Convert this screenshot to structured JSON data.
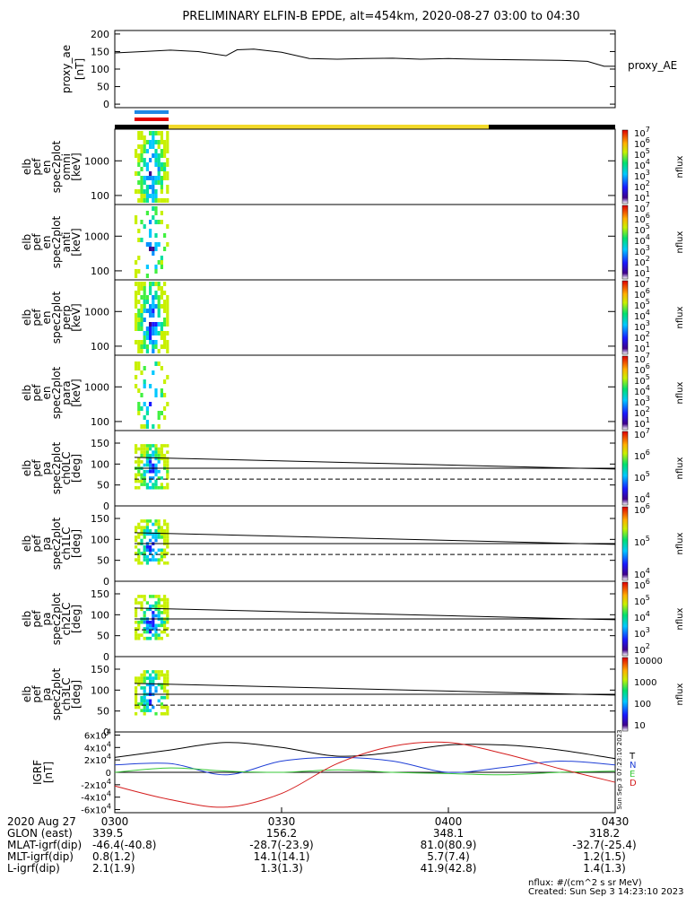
{
  "title": "PRELIMINARY ELFIN-B EPDE, alt=454km, 2020-08-27 03:00 to 04:30",
  "colors": {
    "bar_blue": "#1e88e5",
    "bar_red": "#e00000",
    "bar_yellow": "#f2d92a",
    "bar_black": "#000000",
    "line_black": "#000000",
    "line_blue": "#1f3fd6",
    "line_green": "#37c837",
    "line_red": "#d41c1c"
  },
  "chart_data": [
    {
      "type": "line",
      "name": "proxy_ae",
      "ylabel": "proxy_ae [nT]",
      "legend": "proxy_AE",
      "ylim": [
        -10,
        210
      ],
      "yticks": [
        "200",
        "150",
        "100",
        "50",
        "0"
      ],
      "x_minutes": [
        0,
        5,
        10,
        15,
        20,
        22,
        25,
        30,
        35,
        40,
        45,
        50,
        55,
        60,
        65,
        70,
        75,
        80,
        85,
        88,
        90
      ],
      "values": [
        146,
        150,
        154,
        150,
        138,
        155,
        157,
        148,
        130,
        128,
        130,
        131,
        128,
        130,
        128,
        127,
        126,
        125,
        122,
        108,
        108
      ]
    },
    {
      "type": "heatmap",
      "name": "en-omni",
      "ylabel": "elb pef en spec2plot omni [keV]",
      "scale": "log",
      "yticks": [
        "1000",
        "100"
      ],
      "colorbar": {
        "label": "nflux",
        "ticks": [
          "10^7",
          "10^6",
          "10^5",
          "10^4",
          "10^3",
          "10^2",
          "10^1"
        ]
      }
    },
    {
      "type": "heatmap",
      "name": "en-anti",
      "ylabel": "elb pef en spec2plot anti [keV]",
      "scale": "log",
      "yticks": [
        "1000",
        "100"
      ],
      "colorbar": {
        "label": "nflux",
        "ticks": [
          "10^7",
          "10^6",
          "10^5",
          "10^4",
          "10^3",
          "10^2",
          "10^1"
        ]
      }
    },
    {
      "type": "heatmap",
      "name": "en-perp",
      "ylabel": "elb pef en spec2plot perp [keV]",
      "scale": "log",
      "yticks": [
        "1000",
        "100"
      ],
      "colorbar": {
        "label": "nflux",
        "ticks": [
          "10^7",
          "10^6",
          "10^5",
          "10^4",
          "10^3",
          "10^2",
          "10^1"
        ]
      }
    },
    {
      "type": "heatmap",
      "name": "en-para",
      "ylabel": "elb pef en spec2plot para [keV]",
      "scale": "log",
      "yticks": [
        "1000",
        "100"
      ],
      "colorbar": {
        "label": "nflux",
        "ticks": [
          "10^7",
          "10^6",
          "10^5",
          "10^4",
          "10^3",
          "10^2",
          "10^1"
        ]
      }
    },
    {
      "type": "heatmap",
      "name": "pa-ch0",
      "ylabel": "elb pef pa spec2plot ch0LC [deg]",
      "yticks": [
        "150",
        "100",
        "50",
        "0"
      ],
      "colorbar": {
        "label": "nflux",
        "ticks": [
          "10^7",
          "10^6",
          "10^5",
          "10^4"
        ]
      },
      "lines": {
        "solid_start": 116,
        "solid_end": 88,
        "flat": 90,
        "dashed": 64
      }
    },
    {
      "type": "heatmap",
      "name": "pa-ch1",
      "ylabel": "elb pef pa spec2plot ch1LC [deg]",
      "yticks": [
        "150",
        "100",
        "50",
        "0"
      ],
      "colorbar": {
        "label": "nflux",
        "ticks": [
          "10^6",
          "10^5",
          "10^4"
        ]
      },
      "lines": {
        "solid_start": 116,
        "solid_end": 88,
        "flat": 90,
        "dashed": 64
      }
    },
    {
      "type": "heatmap",
      "name": "pa-ch2",
      "ylabel": "elb pef pa spec2plot ch2LC [deg]",
      "yticks": [
        "150",
        "100",
        "50",
        "0"
      ],
      "colorbar": {
        "label": "nflux",
        "ticks": [
          "10^6",
          "10^5",
          "10^4",
          "10^3",
          "10^2"
        ]
      },
      "lines": {
        "solid_start": 116,
        "solid_end": 88,
        "flat": 90,
        "dashed": 64
      }
    },
    {
      "type": "heatmap",
      "name": "pa-ch3",
      "ylabel": "elb pef pa spec2plot ch3LC [deg]",
      "yticks": [
        "150",
        "100",
        "50",
        "0"
      ],
      "colorbar": {
        "label": "nflux",
        "ticks": [
          "10000",
          "1000",
          "100",
          "10"
        ]
      },
      "lines": {
        "solid_start": 116,
        "solid_end": 88,
        "flat": 90,
        "dashed": 64
      }
    },
    {
      "type": "line",
      "name": "igrf",
      "ylabel": "IGRF [nT]",
      "ylim": [
        -65000,
        65000
      ],
      "yticks": [
        "6x10^4",
        "4x10^4",
        "2x10^4",
        "0",
        "-2x10^4",
        "-4x10^4",
        "-6x10^4"
      ],
      "legend_letters": [
        "T",
        "N",
        "E",
        "D"
      ],
      "x_minutes": [
        0,
        10,
        20,
        30,
        40,
        50,
        60,
        70,
        80,
        90
      ],
      "series": [
        {
          "name": "T",
          "values": [
            24000,
            36000,
            48000,
            40000,
            26000,
            32000,
            44000,
            44000,
            36000,
            22000
          ]
        },
        {
          "name": "N",
          "values": [
            12000,
            14000,
            -4000,
            18000,
            24000,
            18000,
            0,
            8000,
            18000,
            12000
          ]
        },
        {
          "name": "E",
          "values": [
            0,
            7000,
            2000,
            0,
            4000,
            0,
            -2000,
            -4000,
            0,
            2000
          ]
        },
        {
          "name": "D",
          "values": [
            -22000,
            -44000,
            -56000,
            -34000,
            14000,
            42000,
            48000,
            30000,
            6000,
            -16000
          ]
        }
      ]
    }
  ],
  "xaxis": {
    "date": "2020 Aug 27",
    "ticks": [
      "0300",
      "0330",
      "0400",
      "0430"
    ],
    "rows": [
      {
        "label": "GLON (east)",
        "values": [
          "339.5",
          "156.2",
          "348.1",
          "318.2"
        ]
      },
      {
        "label": "MLAT-igrf(dip)",
        "values": [
          "-46.4(-40.8)",
          "-28.7(-23.9)",
          "81.0(80.9)",
          "-32.7(-25.4)"
        ]
      },
      {
        "label": "MLT-igrf(dip)",
        "values": [
          "0.8(1.2)",
          "14.1(14.1)",
          "5.7(7.4)",
          "1.2(1.5)"
        ]
      },
      {
        "label": "L-igrf(dip)",
        "values": [
          "2.1(1.9)",
          "1.3(1.3)",
          "41.9(42.8)",
          "1.4(1.3)"
        ]
      }
    ]
  },
  "footer": {
    "units": "nflux: #/(cm^2 s sr MeV)",
    "created": "Created: Sun Sep  3 14:23:10 2023",
    "side_stamp": "Sun Sep  3 07:23:10 2023"
  }
}
